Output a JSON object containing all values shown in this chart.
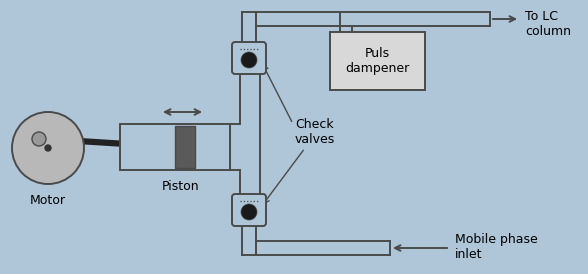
{
  "bg_color": "#aec6d8",
  "line_color": "#4a4a4a",
  "dark_gray": "#555555",
  "light_gray": "#b8b8b8",
  "check_valve_color": "#1a1a1a",
  "puls_box_bg": "#d8d8d8",
  "labels": {
    "motor": "Motor",
    "piston": "Piston",
    "check_valves": "Check\nvalves",
    "puls_dampener": "Puls\ndampener",
    "to_lc": "To LC\ncolumn",
    "mobile_phase": "Mobile phase\ninlet"
  },
  "figsize": [
    5.88,
    2.74
  ],
  "dpi": 100
}
